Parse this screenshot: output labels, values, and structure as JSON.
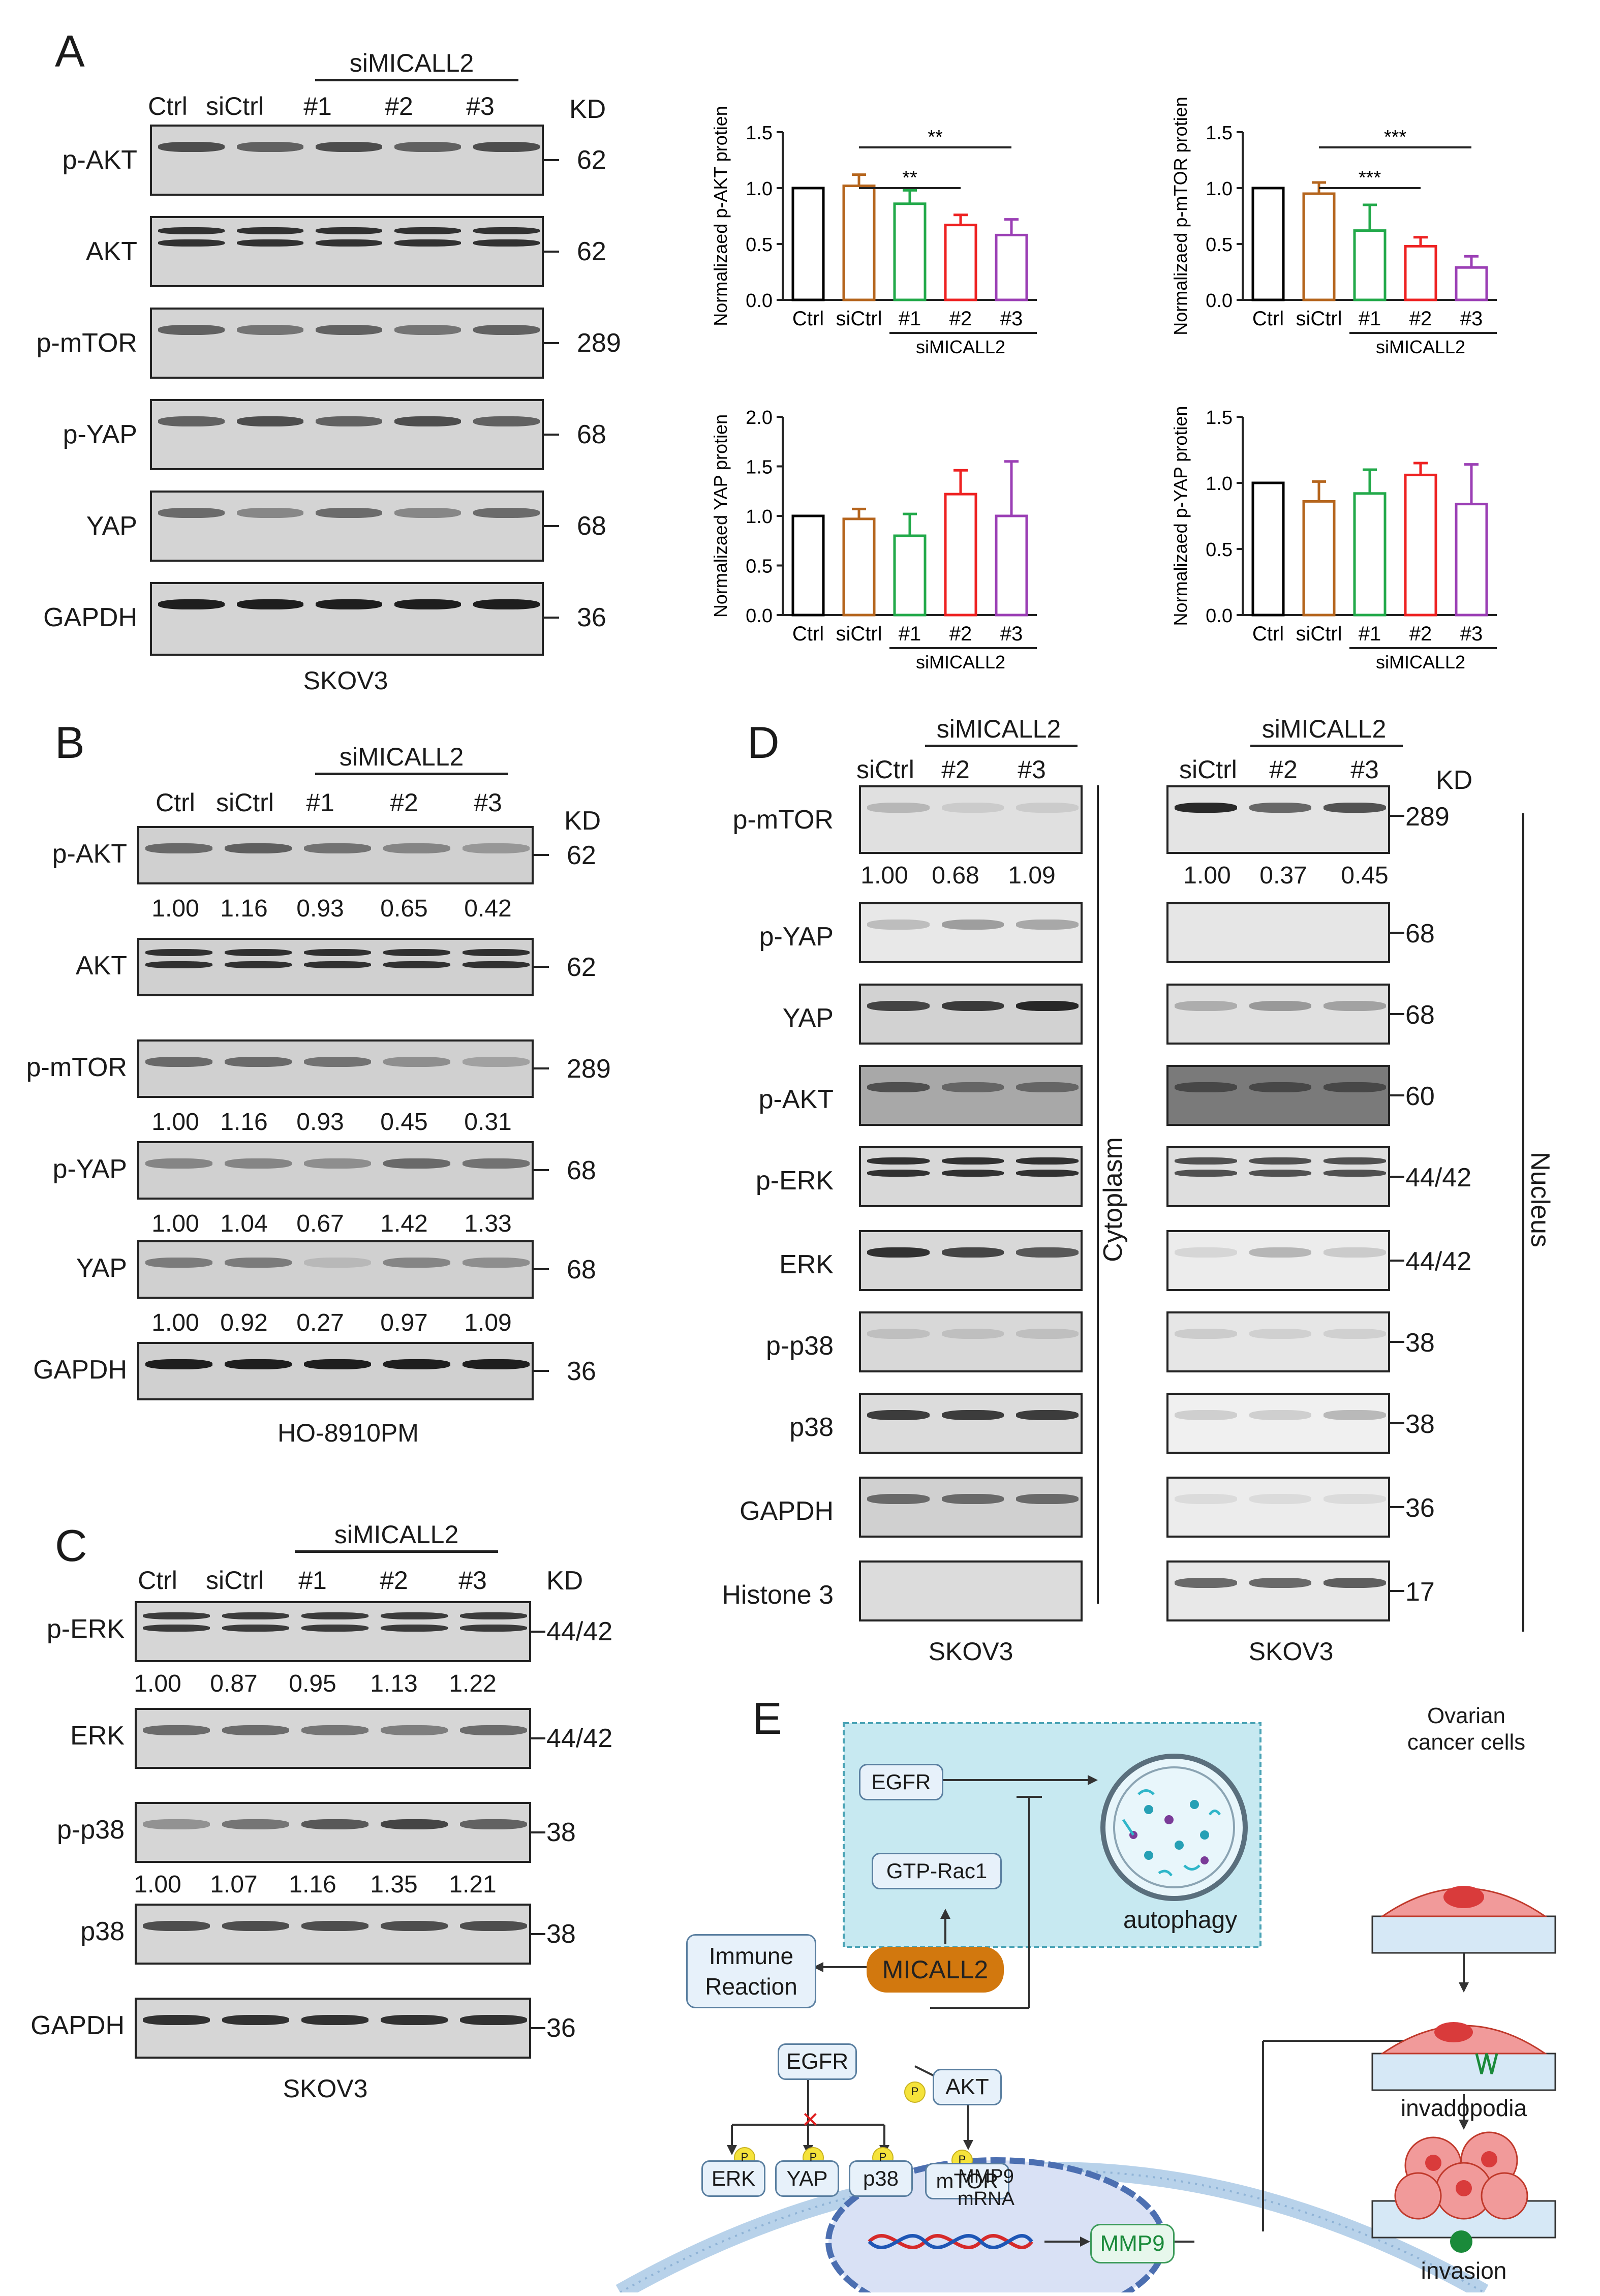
{
  "panel_labels": {
    "A": "A",
    "B": "B",
    "C": "C",
    "D": "D",
    "E": "E"
  },
  "common": {
    "kd": "KD",
    "simicall2": "siMICALL2"
  },
  "panelA": {
    "lanes": [
      "Ctrl",
      "siCtrl",
      "#1",
      "#2",
      "#3"
    ],
    "cell_line": "SKOV3",
    "rows": [
      {
        "label": "p-AKT",
        "kd": "62"
      },
      {
        "label": "AKT",
        "kd": "62"
      },
      {
        "label": "p-mTOR",
        "kd": "289"
      },
      {
        "label": "p-YAP",
        "kd": "68"
      },
      {
        "label": "YAP",
        "kd": "68"
      },
      {
        "label": "GAPDH",
        "kd": "36"
      }
    ]
  },
  "panelB": {
    "lanes": [
      "Ctrl",
      "siCtrl",
      "#1",
      "#2",
      "#3"
    ],
    "cell_line": "HO-8910PM",
    "rows": [
      {
        "label": "p-AKT",
        "kd": "62",
        "quant": [
          "1.00",
          "1.16",
          "0.93",
          "0.65",
          "0.42"
        ]
      },
      {
        "label": "AKT",
        "kd": "62",
        "quant": []
      },
      {
        "label": "p-mTOR",
        "kd": "289",
        "quant": [
          "1.00",
          "1.16",
          "0.93",
          "0.45",
          "0.31"
        ]
      },
      {
        "label": "p-YAP",
        "kd": "68",
        "quant": [
          "1.00",
          "1.04",
          "0.67",
          "1.42",
          "1.33"
        ]
      },
      {
        "label": "YAP",
        "kd": "68",
        "quant": [
          "1.00",
          "0.92",
          "0.27",
          "0.97",
          "1.09"
        ]
      },
      {
        "label": "GAPDH",
        "kd": "36",
        "quant": []
      }
    ]
  },
  "panelC": {
    "lanes": [
      "Ctrl",
      "siCtrl",
      "#1",
      "#2",
      "#3"
    ],
    "cell_line": "SKOV3",
    "rows": [
      {
        "label": "p-ERK",
        "kd": "44/42",
        "quant": [
          "1.00",
          "0.87",
          "0.95",
          "1.13",
          "1.22"
        ]
      },
      {
        "label": "ERK",
        "kd": "44/42",
        "quant": []
      },
      {
        "label": "p-p38",
        "kd": "38",
        "quant": [
          "1.00",
          "1.07",
          "1.16",
          "1.35",
          "1.21"
        ]
      },
      {
        "label": "p38",
        "kd": "38",
        "quant": []
      },
      {
        "label": "GAPDH",
        "kd": "36",
        "quant": []
      }
    ]
  },
  "panelD": {
    "lanes": [
      "siCtrl",
      "#2",
      "#3"
    ],
    "cell_line_left": "SKOV3",
    "cell_line_right": "SKOV3",
    "cytoplasm": "Cytoplasm",
    "nucleus": "Nucleus",
    "rows": [
      {
        "label": "p-mTOR",
        "kd": "289",
        "quant_cyto": [
          "1.00",
          "0.68",
          "1.09"
        ],
        "quant_nuc": [
          "1.00",
          "0.37",
          "0.45"
        ]
      },
      {
        "label": "p-YAP",
        "kd": "68"
      },
      {
        "label": "YAP",
        "kd": "68"
      },
      {
        "label": "p-AKT",
        "kd": "60"
      },
      {
        "label": "p-ERK",
        "kd": "44/42"
      },
      {
        "label": "ERK",
        "kd": "44/42"
      },
      {
        "label": "p-p38",
        "kd": "38"
      },
      {
        "label": "p38",
        "kd": "38"
      },
      {
        "label": "GAPDH",
        "kd": "36"
      },
      {
        "label": "Histone 3",
        "kd": "17"
      }
    ]
  },
  "panelE": {
    "egfr_top": "EGFR",
    "gtp_rac1": "GTP-Rac1",
    "autophagy": "autophagy",
    "immune": "Immune Reaction",
    "micall2": "MICALL2",
    "egfr_mem": "EGFR",
    "akt": "AKT",
    "mtor": "mTOR",
    "erk": "ERK",
    "yap": "YAP",
    "p38": "p38",
    "p": "P",
    "mmp9_mrna_1": "MMP9",
    "mmp9_mrna_2": "mRNA",
    "mmp9": "MMP9",
    "ovarian_1": "Ovarian",
    "ovarian_2": "cancer cells",
    "invadopodia": "invadopodia",
    "invasion": "invasion"
  },
  "chart_data": [
    {
      "type": "bar",
      "ylabel": "Normalizaed p-AKT protien",
      "categories": [
        "Ctrl",
        "siCtrl",
        "#1",
        "#2",
        "#3"
      ],
      "values": [
        1.0,
        1.02,
        0.86,
        0.67,
        0.58
      ],
      "errors": [
        0,
        0.1,
        0.12,
        0.09,
        0.14
      ],
      "colors": [
        "#000000",
        "#b5651d",
        "#22a94a",
        "#ee2222",
        "#9b3fb5"
      ],
      "ylim": [
        0,
        1.5
      ],
      "yticks": [
        "0.0",
        "0.5",
        "1.0",
        "1.5"
      ],
      "sig": [
        {
          "from": 1,
          "to": 3,
          "label": "**"
        },
        {
          "from": 1,
          "to": 4,
          "label": "**"
        }
      ],
      "group_label": "siMICALL2"
    },
    {
      "type": "bar",
      "ylabel": "Normalizaed p-mTOR protien",
      "categories": [
        "Ctrl",
        "siCtrl",
        "#1",
        "#2",
        "#3"
      ],
      "values": [
        1.0,
        0.95,
        0.62,
        0.48,
        0.29
      ],
      "errors": [
        0,
        0.1,
        0.23,
        0.08,
        0.1
      ],
      "colors": [
        "#000000",
        "#b5651d",
        "#22a94a",
        "#ee2222",
        "#9b3fb5"
      ],
      "ylim": [
        0,
        1.5
      ],
      "yticks": [
        "0.0",
        "0.5",
        "1.0",
        "1.5"
      ],
      "sig": [
        {
          "from": 1,
          "to": 3,
          "label": "***"
        },
        {
          "from": 1,
          "to": 4,
          "label": "***"
        }
      ],
      "group_label": "siMICALL2"
    },
    {
      "type": "bar",
      "ylabel": "Normalizaed YAP protien",
      "categories": [
        "Ctrl",
        "siCtrl",
        "#1",
        "#2",
        "#3"
      ],
      "values": [
        1.0,
        0.97,
        0.8,
        1.22,
        1.0
      ],
      "errors": [
        0,
        0.1,
        0.22,
        0.24,
        0.55
      ],
      "colors": [
        "#000000",
        "#b5651d",
        "#22a94a",
        "#ee2222",
        "#9b3fb5"
      ],
      "ylim": [
        0,
        2.0
      ],
      "yticks": [
        "0.0",
        "0.5",
        "1.0",
        "1.5",
        "2.0"
      ],
      "sig": [],
      "group_label": "siMICALL2"
    },
    {
      "type": "bar",
      "ylabel": "Normalizaed p-YAP protien",
      "categories": [
        "Ctrl",
        "siCtrl",
        "#1",
        "#2",
        "#3"
      ],
      "values": [
        1.0,
        0.86,
        0.92,
        1.06,
        0.84
      ],
      "errors": [
        0,
        0.15,
        0.18,
        0.09,
        0.3
      ],
      "colors": [
        "#000000",
        "#b5651d",
        "#22a94a",
        "#ee2222",
        "#9b3fb5"
      ],
      "ylim": [
        0,
        1.5
      ],
      "yticks": [
        "0.0",
        "0.5",
        "1.0",
        "1.5"
      ],
      "sig": [],
      "group_label": "siMICALL2"
    }
  ]
}
